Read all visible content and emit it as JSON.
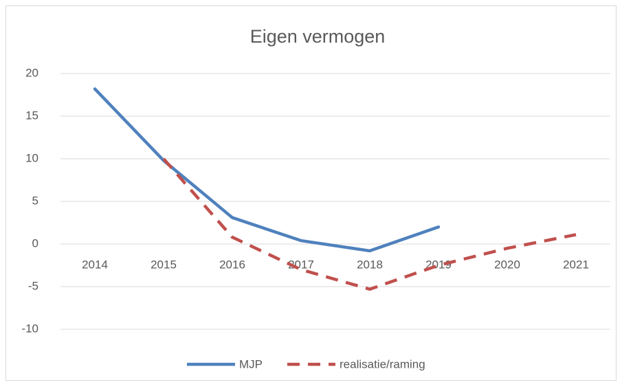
{
  "chart_data": {
    "type": "line",
    "title": "Eigen vermogen",
    "categories": [
      "2014",
      "2015",
      "2016",
      "2017",
      "2018",
      "2019",
      "2020",
      "2021"
    ],
    "series": [
      {
        "name": "MJP",
        "color": "#4f81bd",
        "line_style": "solid",
        "values": [
          18.2,
          9.8,
          3.1,
          0.4,
          -0.8,
          2.0,
          null,
          null
        ]
      },
      {
        "name": "realisatie/raming",
        "color": "#c0504d",
        "line_style": "dashed",
        "values": [
          null,
          10.0,
          0.8,
          -3.0,
          -5.3,
          -2.5,
          -0.5,
          1.1
        ]
      }
    ],
    "ylim": [
      -10,
      20
    ],
    "yticks": [
      -10,
      -5,
      0,
      5,
      10,
      15,
      20
    ],
    "grid": true,
    "legend": "bottom"
  }
}
